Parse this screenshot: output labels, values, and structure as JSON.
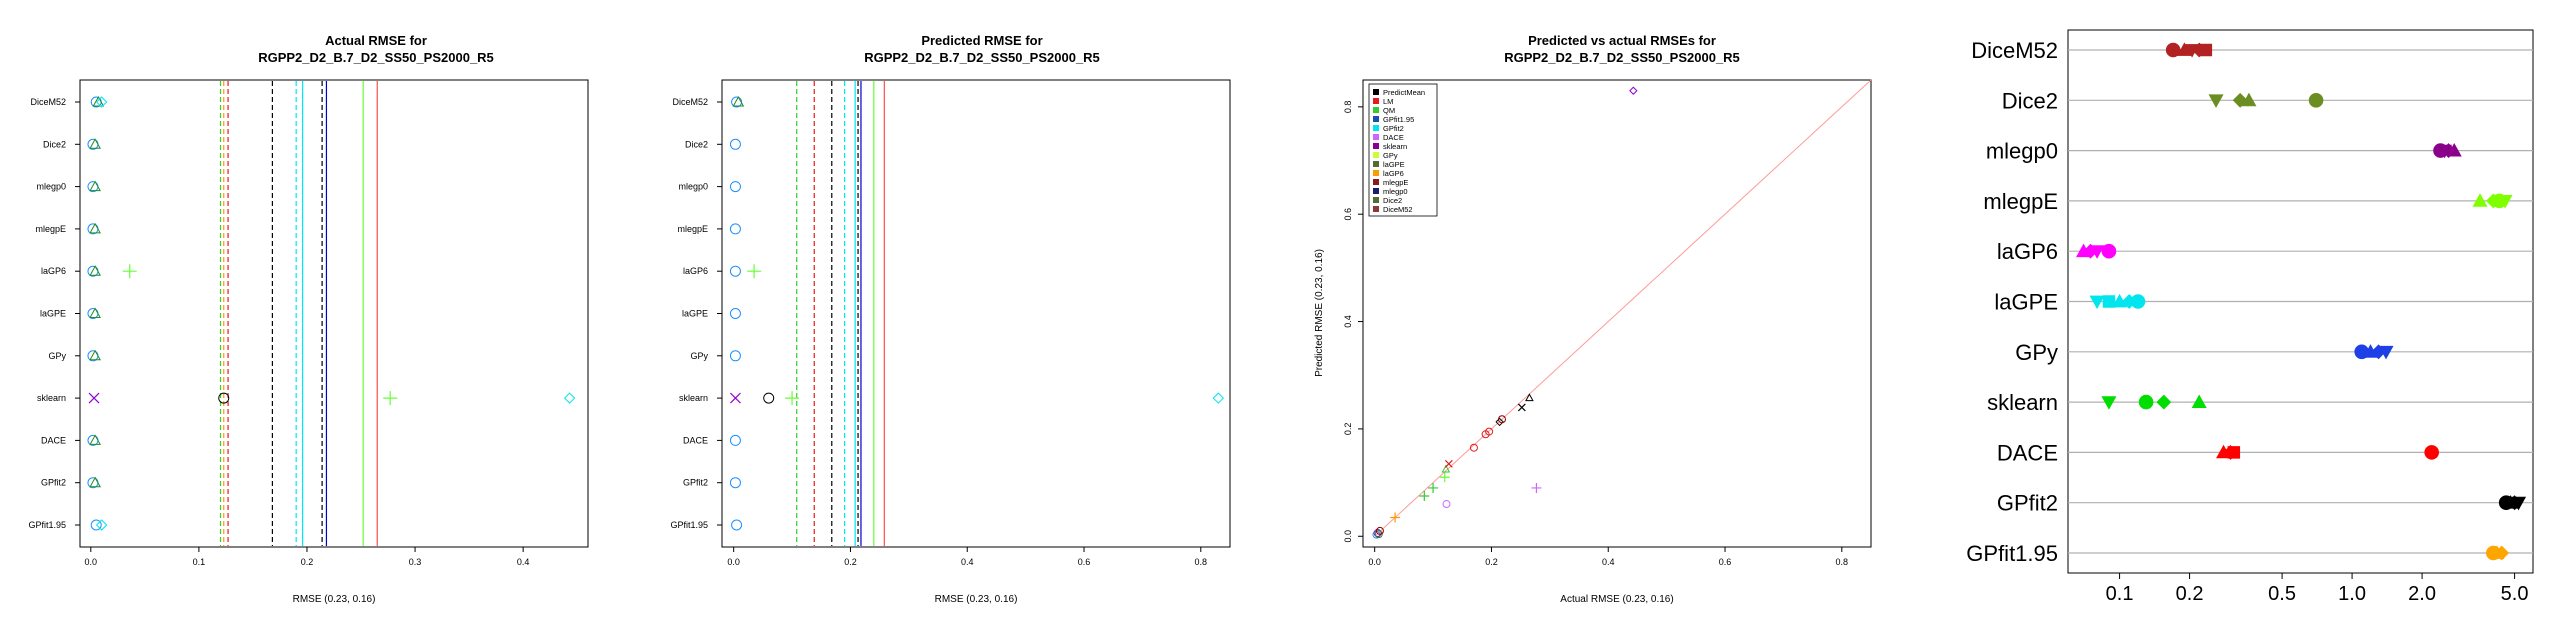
{
  "chart_data": [
    {
      "type": "scatter",
      "title_line1": "Actual RMSE for",
      "title_line2": "RGPP2_D2_B.7_D2_SS50_PS2000_R5",
      "xlabel": "RMSE (0.23, 0.16)",
      "xlim": [
        -0.01,
        0.46
      ],
      "xticks": [
        "0.0",
        "0.1",
        "0.2",
        "0.3",
        "0.4"
      ],
      "rows": [
        "DiceM52",
        "Dice2",
        "mlegp0",
        "mlegpE",
        "laGP6",
        "laGPE",
        "GPy",
        "sklearn",
        "DACE",
        "GPfit2",
        "GPfit1.95"
      ],
      "points": [
        {
          "row": "DiceM52",
          "x": 0.005,
          "color": "#1e90ff",
          "shape": "circle"
        },
        {
          "row": "DiceM52",
          "x": 0.007,
          "color": "#228b22",
          "shape": "triangle"
        },
        {
          "row": "DiceM52",
          "x": 0.01,
          "color": "#00e5ee",
          "shape": "diamond"
        },
        {
          "row": "Dice2",
          "x": 0.002,
          "color": "#1e90ff",
          "shape": "circle"
        },
        {
          "row": "Dice2",
          "x": 0.004,
          "color": "#228b22",
          "shape": "triangle"
        },
        {
          "row": "mlegp0",
          "x": 0.002,
          "color": "#1e90ff",
          "shape": "circle"
        },
        {
          "row": "mlegp0",
          "x": 0.004,
          "color": "#228b22",
          "shape": "triangle"
        },
        {
          "row": "mlegpE",
          "x": 0.002,
          "color": "#1e90ff",
          "shape": "circle"
        },
        {
          "row": "mlegpE",
          "x": 0.004,
          "color": "#228b22",
          "shape": "triangle"
        },
        {
          "row": "laGP6",
          "x": 0.002,
          "color": "#1e90ff",
          "shape": "circle"
        },
        {
          "row": "laGP6",
          "x": 0.004,
          "color": "#228b22",
          "shape": "triangle"
        },
        {
          "row": "laGP6",
          "x": 0.036,
          "color": "#66ff33",
          "shape": "plus"
        },
        {
          "row": "laGPE",
          "x": 0.002,
          "color": "#1e90ff",
          "shape": "circle"
        },
        {
          "row": "laGPE",
          "x": 0.004,
          "color": "#228b22",
          "shape": "triangle"
        },
        {
          "row": "GPy",
          "x": 0.002,
          "color": "#1e90ff",
          "shape": "circle"
        },
        {
          "row": "GPy",
          "x": 0.004,
          "color": "#228b22",
          "shape": "triangle"
        },
        {
          "row": "sklearn",
          "x": 0.003,
          "color": "#9400d3",
          "shape": "cross"
        },
        {
          "row": "sklearn",
          "x": 0.123,
          "color": "#000000",
          "shape": "circle"
        },
        {
          "row": "sklearn",
          "x": 0.277,
          "color": "#66ff33",
          "shape": "plus"
        },
        {
          "row": "sklearn",
          "x": 0.443,
          "color": "#00e5ee",
          "shape": "diamond"
        },
        {
          "row": "DACE",
          "x": 0.002,
          "color": "#1e90ff",
          "shape": "circle"
        },
        {
          "row": "DACE",
          "x": 0.004,
          "color": "#228b22",
          "shape": "triangle"
        },
        {
          "row": "GPfit2",
          "x": 0.002,
          "color": "#1e90ff",
          "shape": "circle"
        },
        {
          "row": "GPfit2",
          "x": 0.004,
          "color": "#228b22",
          "shape": "triangle"
        },
        {
          "row": "GPfit1.95",
          "x": 0.005,
          "color": "#1e90ff",
          "shape": "circle"
        },
        {
          "row": "GPfit1.95",
          "x": 0.01,
          "color": "#00e5ee",
          "shape": "diamond"
        }
      ],
      "vlines": [
        {
          "x": 0.12,
          "color": "#33cc33",
          "dash": true
        },
        {
          "x": 0.123,
          "color": "#ff9900",
          "dash": true
        },
        {
          "x": 0.127,
          "color": "#e41a1c",
          "dash": true
        },
        {
          "x": 0.168,
          "color": "#000000",
          "dash": true
        },
        {
          "x": 0.19,
          "color": "#00e5ee",
          "dash": true
        },
        {
          "x": 0.196,
          "color": "#00e5ee",
          "dash": false
        },
        {
          "x": 0.214,
          "color": "#000000",
          "dash": true
        },
        {
          "x": 0.218,
          "color": "#0000cd",
          "dash": false
        },
        {
          "x": 0.252,
          "color": "#66ff33",
          "dash": false
        },
        {
          "x": 0.265,
          "color": "#ff4d4d",
          "dash": false
        }
      ]
    },
    {
      "type": "scatter",
      "title_line1": "Predicted RMSE for",
      "title_line2": "RGPP2_D2_B.7_D2_SS50_PS2000_R5",
      "xlabel": "RMSE (0.23, 0.16)",
      "xlim": [
        -0.02,
        0.85
      ],
      "xticks": [
        "0.0",
        "0.2",
        "0.4",
        "0.6",
        "0.8"
      ],
      "rows": [
        "DiceM52",
        "Dice2",
        "mlegp0",
        "mlegpE",
        "laGP6",
        "laGPE",
        "GPy",
        "sklearn",
        "DACE",
        "GPfit2",
        "GPfit1.95"
      ],
      "points": [
        {
          "row": "DiceM52",
          "x": 0.005,
          "color": "#1e90ff",
          "shape": "circle"
        },
        {
          "row": "DiceM52",
          "x": 0.008,
          "color": "#228b22",
          "shape": "triangle"
        },
        {
          "row": "Dice2",
          "x": 0.003,
          "color": "#1e90ff",
          "shape": "circle"
        },
        {
          "row": "mlegp0",
          "x": 0.003,
          "color": "#1e90ff",
          "shape": "circle"
        },
        {
          "row": "mlegpE",
          "x": 0.003,
          "color": "#1e90ff",
          "shape": "circle"
        },
        {
          "row": "laGP6",
          "x": 0.003,
          "color": "#1e90ff",
          "shape": "circle"
        },
        {
          "row": "laGP6",
          "x": 0.035,
          "color": "#66ff33",
          "shape": "plus"
        },
        {
          "row": "laGPE",
          "x": 0.003,
          "color": "#1e90ff",
          "shape": "circle"
        },
        {
          "row": "GPy",
          "x": 0.003,
          "color": "#1e90ff",
          "shape": "circle"
        },
        {
          "row": "sklearn",
          "x": 0.003,
          "color": "#9400d3",
          "shape": "cross"
        },
        {
          "row": "sklearn",
          "x": 0.06,
          "color": "#000000",
          "shape": "circle"
        },
        {
          "row": "sklearn",
          "x": 0.1,
          "color": "#66ff33",
          "shape": "plus"
        },
        {
          "row": "sklearn",
          "x": 0.83,
          "color": "#00e5ee",
          "shape": "diamond"
        },
        {
          "row": "DACE",
          "x": 0.003,
          "color": "#1e90ff",
          "shape": "circle"
        },
        {
          "row": "GPfit2",
          "x": 0.003,
          "color": "#1e90ff",
          "shape": "circle"
        },
        {
          "row": "GPfit1.95",
          "x": 0.005,
          "color": "#1e90ff",
          "shape": "circle"
        }
      ],
      "vlines": [
        {
          "x": 0.108,
          "color": "#33cc33",
          "dash": true
        },
        {
          "x": 0.138,
          "color": "#e41a1c",
          "dash": true
        },
        {
          "x": 0.168,
          "color": "#000000",
          "dash": true
        },
        {
          "x": 0.19,
          "color": "#00e5ee",
          "dash": true
        },
        {
          "x": 0.208,
          "color": "#00e5ee",
          "dash": false
        },
        {
          "x": 0.213,
          "color": "#000000",
          "dash": true
        },
        {
          "x": 0.218,
          "color": "#0000cd",
          "dash": false
        },
        {
          "x": 0.24,
          "color": "#66ff33",
          "dash": false
        },
        {
          "x": 0.258,
          "color": "#ff4d4d",
          "dash": false
        }
      ]
    },
    {
      "type": "scatter",
      "title_line1": "Predicted vs actual RMSEs for",
      "title_line2": "RGPP2_D2_B.7_D2_SS50_PS2000_R5",
      "xlabel": "Actual RMSE (0.23, 0.16)",
      "ylabel": "Predicted RMSE (0.23, 0.16)",
      "xlim": [
        -0.02,
        0.85
      ],
      "ylim": [
        -0.02,
        0.85
      ],
      "xticks": [
        "0.0",
        "0.2",
        "0.4",
        "0.6",
        "0.8"
      ],
      "yticks": [
        "0.0",
        "0.2",
        "0.4",
        "0.6",
        "0.8"
      ],
      "diagonal_color": "#ff9999",
      "legend": [
        {
          "label": "PredictMean",
          "color": "#000000"
        },
        {
          "label": "LM",
          "color": "#e41a1c"
        },
        {
          "label": "QM",
          "color": "#33cc33"
        },
        {
          "label": "GPfit1.95",
          "color": "#1f4fa8"
        },
        {
          "label": "GPfit2",
          "color": "#00e5ee"
        },
        {
          "label": "DACE",
          "color": "#cc66ff"
        },
        {
          "label": "sklearn",
          "color": "#8b008b"
        },
        {
          "label": "GPy",
          "color": "#ccff33"
        },
        {
          "label": "laGPE",
          "color": "#556b2f"
        },
        {
          "label": "laGP6",
          "color": "#ff9900"
        },
        {
          "label": "mlegpE",
          "color": "#8b1a1a"
        },
        {
          "label": "mlegp0",
          "color": "#1c1c6b"
        },
        {
          "label": "Dice2",
          "color": "#556b2f"
        },
        {
          "label": "DiceM52",
          "color": "#8b3a3a"
        }
      ],
      "points": [
        {
          "x": 0.003,
          "y": 0.003,
          "color": "#1e90ff",
          "shape": "circle"
        },
        {
          "x": 0.005,
          "y": 0.006,
          "color": "#9400d3",
          "shape": "circle"
        },
        {
          "x": 0.007,
          "y": 0.004,
          "color": "#228b22",
          "shape": "circle"
        },
        {
          "x": 0.009,
          "y": 0.01,
          "color": "#8b0000",
          "shape": "circle"
        },
        {
          "x": 0.035,
          "y": 0.035,
          "color": "#ff9900",
          "shape": "plus"
        },
        {
          "x": 0.085,
          "y": 0.075,
          "color": "#33cc33",
          "shape": "plus"
        },
        {
          "x": 0.1,
          "y": 0.09,
          "color": "#33cc33",
          "shape": "plus"
        },
        {
          "x": 0.12,
          "y": 0.11,
          "color": "#66ff33",
          "shape": "plus"
        },
        {
          "x": 0.122,
          "y": 0.125,
          "color": "#33cc33",
          "shape": "triangle"
        },
        {
          "x": 0.127,
          "y": 0.135,
          "color": "#e41a1c",
          "shape": "cross"
        },
        {
          "x": 0.123,
          "y": 0.06,
          "color": "#cc66ff",
          "shape": "circle"
        },
        {
          "x": 0.17,
          "y": 0.165,
          "color": "#e41a1c",
          "shape": "circle"
        },
        {
          "x": 0.19,
          "y": 0.19,
          "color": "#e41a1c",
          "shape": "circle"
        },
        {
          "x": 0.196,
          "y": 0.195,
          "color": "#e41a1c",
          "shape": "circle"
        },
        {
          "x": 0.214,
          "y": 0.213,
          "color": "#000000",
          "shape": "diamond"
        },
        {
          "x": 0.218,
          "y": 0.218,
          "color": "#8b0000",
          "shape": "circle"
        },
        {
          "x": 0.252,
          "y": 0.24,
          "color": "#000000",
          "shape": "cross"
        },
        {
          "x": 0.265,
          "y": 0.258,
          "color": "#000000",
          "shape": "triangle"
        },
        {
          "x": 0.277,
          "y": 0.09,
          "color": "#cc66ff",
          "shape": "plus"
        },
        {
          "x": 0.443,
          "y": 0.83,
          "color": "#9400d3",
          "shape": "diamond"
        }
      ]
    },
    {
      "type": "scatter",
      "xscale": "log",
      "xlim": [
        0.06,
        6.0
      ],
      "xticks": [
        0.1,
        0.2,
        0.5,
        1.0,
        2.0,
        5.0
      ],
      "xtick_labels": [
        "0.1",
        "0.2",
        "0.5",
        "1.0",
        "2.0",
        "5.0"
      ],
      "rows": [
        "DiceM52",
        "Dice2",
        "mlegp0",
        "mlegpE",
        "laGP6",
        "laGPE",
        "GPy",
        "sklearn",
        "DACE",
        "GPfit2",
        "GPfit1.95"
      ],
      "points": [
        {
          "row": "DiceM52",
          "x": 0.17,
          "color": "#b22222",
          "shape": "circle"
        },
        {
          "row": "DiceM52",
          "x": 0.19,
          "color": "#b22222",
          "shape": "triangle"
        },
        {
          "row": "DiceM52",
          "x": 0.205,
          "color": "#b22222",
          "shape": "triangle-down"
        },
        {
          "row": "DiceM52",
          "x": 0.22,
          "color": "#b22222",
          "shape": "diamond"
        },
        {
          "row": "DiceM52",
          "x": 0.235,
          "color": "#b22222",
          "shape": "square"
        },
        {
          "row": "Dice2",
          "x": 0.26,
          "color": "#6b8e23",
          "shape": "triangle-down"
        },
        {
          "row": "Dice2",
          "x": 0.33,
          "color": "#6b8e23",
          "shape": "diamond"
        },
        {
          "row": "Dice2",
          "x": 0.36,
          "color": "#6b8e23",
          "shape": "triangle"
        },
        {
          "row": "Dice2",
          "x": 0.7,
          "color": "#6b8e23",
          "shape": "circle"
        },
        {
          "row": "mlegp0",
          "x": 2.4,
          "color": "#8b008b",
          "shape": "circle"
        },
        {
          "row": "mlegp0",
          "x": 2.5,
          "color": "#8b008b",
          "shape": "triangle-down"
        },
        {
          "row": "mlegp0",
          "x": 2.6,
          "color": "#8b008b",
          "shape": "diamond"
        },
        {
          "row": "mlegp0",
          "x": 2.75,
          "color": "#8b008b",
          "shape": "triangle"
        },
        {
          "row": "mlegpE",
          "x": 3.55,
          "color": "#7fff00",
          "shape": "triangle"
        },
        {
          "row": "mlegpE",
          "x": 4.05,
          "color": "#7fff00",
          "shape": "diamond"
        },
        {
          "row": "mlegpE",
          "x": 4.3,
          "color": "#7fff00",
          "shape": "circle"
        },
        {
          "row": "mlegpE",
          "x": 4.55,
          "color": "#7fff00",
          "shape": "triangle-down"
        },
        {
          "row": "laGP6",
          "x": 0.07,
          "color": "#ff00ff",
          "shape": "triangle"
        },
        {
          "row": "laGP6",
          "x": 0.075,
          "color": "#ff00ff",
          "shape": "diamond"
        },
        {
          "row": "laGP6",
          "x": 0.08,
          "color": "#ff00ff",
          "shape": "triangle-down"
        },
        {
          "row": "laGP6",
          "x": 0.09,
          "color": "#ff00ff",
          "shape": "circle"
        },
        {
          "row": "laGPE",
          "x": 0.08,
          "color": "#00e5ee",
          "shape": "triangle-down"
        },
        {
          "row": "laGPE",
          "x": 0.09,
          "color": "#00e5ee",
          "shape": "square"
        },
        {
          "row": "laGPE",
          "x": 0.1,
          "color": "#00e5ee",
          "shape": "triangle"
        },
        {
          "row": "laGPE",
          "x": 0.11,
          "color": "#00e5ee",
          "shape": "diamond"
        },
        {
          "row": "laGPE",
          "x": 0.12,
          "color": "#00e5ee",
          "shape": "circle"
        },
        {
          "row": "GPy",
          "x": 1.1,
          "color": "#1e40e6",
          "shape": "circle"
        },
        {
          "row": "GPy",
          "x": 1.2,
          "color": "#1e40e6",
          "shape": "triangle"
        },
        {
          "row": "GPy",
          "x": 1.3,
          "color": "#1e40e6",
          "shape": "diamond"
        },
        {
          "row": "GPy",
          "x": 1.4,
          "color": "#1e40e6",
          "shape": "triangle-down"
        },
        {
          "row": "sklearn",
          "x": 0.09,
          "color": "#00dd00",
          "shape": "triangle-down"
        },
        {
          "row": "sklearn",
          "x": 0.13,
          "color": "#00dd00",
          "shape": "circle"
        },
        {
          "row": "sklearn",
          "x": 0.155,
          "color": "#00dd00",
          "shape": "diamond"
        },
        {
          "row": "sklearn",
          "x": 0.22,
          "color": "#00dd00",
          "shape": "triangle"
        },
        {
          "row": "DACE",
          "x": 0.28,
          "color": "#ff0000",
          "shape": "triangle"
        },
        {
          "row": "DACE",
          "x": 0.3,
          "color": "#ff0000",
          "shape": "diamond"
        },
        {
          "row": "DACE",
          "x": 0.31,
          "color": "#ff0000",
          "shape": "square"
        },
        {
          "row": "DACE",
          "x": 2.2,
          "color": "#ff0000",
          "shape": "circle"
        },
        {
          "row": "GPfit2",
          "x": 4.6,
          "color": "#000000",
          "shape": "circle"
        },
        {
          "row": "GPfit2",
          "x": 4.8,
          "color": "#000000",
          "shape": "triangle"
        },
        {
          "row": "GPfit2",
          "x": 5.0,
          "color": "#000000",
          "shape": "diamond"
        },
        {
          "row": "GPfit2",
          "x": 5.2,
          "color": "#000000",
          "shape": "triangle-down"
        },
        {
          "row": "GPfit1.95",
          "x": 4.05,
          "color": "#ffa500",
          "shape": "circle"
        },
        {
          "row": "GPfit1.95",
          "x": 4.2,
          "color": "#ffa500",
          "shape": "triangle"
        },
        {
          "row": "GPfit1.95",
          "x": 4.4,
          "color": "#ffa500",
          "shape": "diamond"
        }
      ]
    }
  ]
}
